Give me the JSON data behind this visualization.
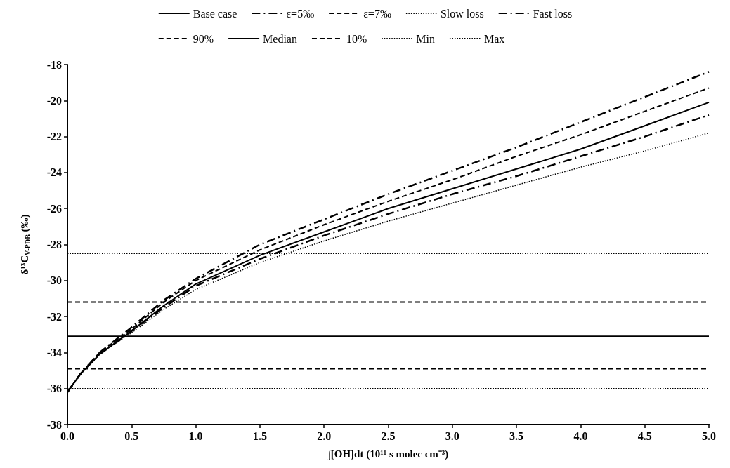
{
  "chart_data": {
    "type": "line",
    "xlabel": "∫[OH]dt (10¹¹ s molec cm⁻³)",
    "ylabel": "δ¹³C$_{V-PDB}$ (‰)",
    "x": [
      0,
      0.1,
      0.25,
      0.5,
      0.75,
      1.0,
      1.5,
      2.0,
      2.5,
      3.0,
      3.5,
      4.0,
      4.5,
      5.0
    ],
    "series": [
      {
        "name": "Base case",
        "color": "#000000",
        "line_style": "solid",
        "values": [
          -36.2,
          -35.2,
          -34.1,
          -32.8,
          -31.4,
          -30.2,
          -28.6,
          -27.3,
          -26.0,
          -24.9,
          -23.8,
          -22.7,
          -21.4,
          -20.1
        ]
      },
      {
        "name": "ε=5‰",
        "color": "#000000",
        "line_style": "dashdot",
        "values": [
          -36.2,
          -35.2,
          -34.1,
          -32.8,
          -31.5,
          -30.3,
          -28.8,
          -27.5,
          -26.3,
          -25.2,
          -24.2,
          -23.1,
          -22.0,
          -20.8
        ]
      },
      {
        "name": "ε=7‰",
        "color": "#000000",
        "line_style": "dashed",
        "values": [
          -36.2,
          -35.2,
          -34.0,
          -32.7,
          -31.2,
          -30.0,
          -28.3,
          -26.9,
          -25.6,
          -24.4,
          -23.1,
          -21.9,
          -20.6,
          -19.3
        ]
      },
      {
        "name": "Slow loss",
        "color": "#000000",
        "line_style": "dotted",
        "values": [
          -36.2,
          -35.2,
          -34.1,
          -32.9,
          -31.6,
          -30.5,
          -29.0,
          -27.8,
          -26.7,
          -25.7,
          -24.7,
          -23.7,
          -22.8,
          -21.8
        ]
      },
      {
        "name": "Fast loss",
        "color": "#000000",
        "line_style": "dashdot",
        "values": [
          -36.2,
          -35.2,
          -34.0,
          -32.6,
          -31.1,
          -29.9,
          -28.0,
          -26.6,
          -25.2,
          -23.9,
          -22.6,
          -21.2,
          -19.8,
          -18.4
        ]
      },
      {
        "name": "90%",
        "color": "#000000",
        "line_style": "dashed",
        "values": [
          -31.2,
          -31.2,
          -31.2,
          -31.2,
          -31.2,
          -31.2,
          -31.2,
          -31.2,
          -31.2,
          -31.2,
          -31.2,
          -31.2,
          -31.2,
          -31.2
        ]
      },
      {
        "name": "Median",
        "color": "#000000",
        "line_style": "solid",
        "values": [
          -33.1,
          -33.1,
          -33.1,
          -33.1,
          -33.1,
          -33.1,
          -33.1,
          -33.1,
          -33.1,
          -33.1,
          -33.1,
          -33.1,
          -33.1,
          -33.1
        ]
      },
      {
        "name": "10%",
        "color": "#000000",
        "line_style": "dashed",
        "values": [
          -34.9,
          -34.9,
          -34.9,
          -34.9,
          -34.9,
          -34.9,
          -34.9,
          -34.9,
          -34.9,
          -34.9,
          -34.9,
          -34.9,
          -34.9,
          -34.9
        ]
      },
      {
        "name": "Min",
        "color": "#000000",
        "line_style": "dotted",
        "values": [
          -36.0,
          -36.0,
          -36.0,
          -36.0,
          -36.0,
          -36.0,
          -36.0,
          -36.0,
          -36.0,
          -36.0,
          -36.0,
          -36.0,
          -36.0,
          -36.0
        ]
      },
      {
        "name": "Max",
        "color": "#000000",
        "line_style": "dotted",
        "values": [
          -28.5,
          -28.5,
          -28.5,
          -28.5,
          -28.5,
          -28.5,
          -28.5,
          -28.5,
          -28.5,
          -28.5,
          -28.5,
          -28.5,
          -28.5,
          -28.5
        ]
      }
    ],
    "xlim": [
      0,
      5
    ],
    "xticks": [
      {
        "value": 0,
        "label": "0.0"
      },
      {
        "value": 0.5,
        "label": "0.5"
      },
      {
        "value": 1,
        "label": "1.0"
      },
      {
        "value": 1.5,
        "label": "1.5"
      },
      {
        "value": 2,
        "label": "2.0"
      },
      {
        "value": 2.5,
        "label": "2.5"
      },
      {
        "value": 3,
        "label": "3.0"
      },
      {
        "value": 3.5,
        "label": "3.5"
      },
      {
        "value": 4,
        "label": "4.0"
      },
      {
        "value": 4.5,
        "label": "4.5"
      },
      {
        "value": 5,
        "label": "5.0"
      }
    ],
    "ylim": [
      -38,
      -18
    ],
    "yticks": [
      -38,
      -36,
      -34,
      -32,
      -30,
      -28,
      -26,
      -24,
      -22,
      -20,
      -18
    ],
    "grid": false,
    "legend": "top",
    "marker": "none"
  }
}
